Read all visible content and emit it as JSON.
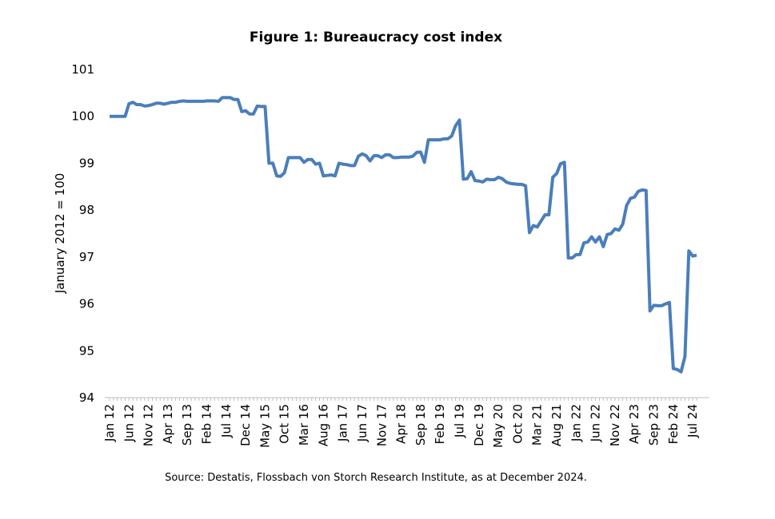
{
  "chart_data": {
    "type": "line",
    "title": "Figure 1: Bureaucracy cost index",
    "y_label": "January 2012 = 100",
    "source": "Source: Destatis, Flossbach von Storch Research Institute, as at December 2024.",
    "categories": [
      "Jan 12",
      null,
      null,
      null,
      null,
      "Jun 12",
      null,
      null,
      null,
      null,
      "Nov 12",
      null,
      null,
      null,
      null,
      "Apr 13",
      null,
      null,
      null,
      null,
      "Sep 13",
      null,
      null,
      null,
      null,
      "Feb 14",
      null,
      null,
      null,
      null,
      "Jul 14",
      null,
      null,
      null,
      null,
      "Dec 14",
      null,
      null,
      null,
      null,
      "May 15",
      null,
      null,
      null,
      null,
      "Oct 15",
      null,
      null,
      null,
      null,
      "Mar 16",
      null,
      null,
      null,
      null,
      "Aug 16",
      null,
      null,
      null,
      null,
      "Jan 17",
      null,
      null,
      null,
      null,
      "Jun 17",
      null,
      null,
      null,
      null,
      "Nov 17",
      null,
      null,
      null,
      null,
      "Apr 18",
      null,
      null,
      null,
      null,
      "Sep 18",
      null,
      null,
      null,
      null,
      "Feb 19",
      null,
      null,
      null,
      null,
      "Jul 19",
      null,
      null,
      null,
      null,
      "Dec 19",
      null,
      null,
      null,
      null,
      "May 20",
      null,
      null,
      null,
      null,
      "Oct 20",
      null,
      null,
      null,
      null,
      "Mar 21",
      null,
      null,
      null,
      null,
      "Aug 21",
      null,
      null,
      null,
      null,
      "Jan 22",
      null,
      null,
      null,
      null,
      "Jun 22",
      null,
      null,
      null,
      null,
      "Nov 22",
      null,
      null,
      null,
      null,
      "Apr 23",
      null,
      null,
      null,
      null,
      "Sep 23",
      null,
      null,
      null,
      null,
      "Feb 24",
      null,
      null,
      null,
      null,
      "Jul 24",
      null
    ],
    "series": [
      {
        "color": "#4a7ebb",
        "values": [
          100,
          100,
          100,
          100,
          100,
          100.27,
          100.3,
          100.25,
          100.25,
          100.22,
          100.23,
          100.25,
          100.28,
          100.28,
          100.26,
          100.28,
          100.3,
          100.3,
          100.32,
          100.33,
          100.32,
          100.32,
          100.32,
          100.32,
          100.32,
          100.33,
          100.33,
          100.33,
          100.32,
          100.4,
          100.4,
          100.4,
          100.36,
          100.36,
          100.1,
          100.12,
          100.05,
          100.05,
          100.22,
          100.21,
          100.21,
          99,
          99,
          98.73,
          98.72,
          98.8,
          99.12,
          99.12,
          99.12,
          99.12,
          99.02,
          99.08,
          99.08,
          98.98,
          99,
          98.73,
          98.74,
          98.75,
          98.73,
          99,
          98.98,
          98.97,
          98.95,
          98.95,
          99.15,
          99.2,
          99.16,
          99.05,
          99.16,
          99.16,
          99.12,
          99.18,
          99.18,
          99.12,
          99.12,
          99.13,
          99.13,
          99.13,
          99.15,
          99.23,
          99.24,
          99.02,
          99.5,
          99.5,
          99.5,
          99.5,
          99.52,
          99.52,
          99.58,
          99.8,
          99.92,
          98.66,
          98.67,
          98.82,
          98.63,
          98.62,
          98.6,
          98.66,
          98.65,
          98.65,
          98.7,
          98.67,
          98.6,
          98.57,
          98.56,
          98.55,
          98.55,
          98.52,
          97.52,
          97.67,
          97.64,
          97.77,
          97.9,
          97.9,
          98.7,
          98.78,
          98.99,
          99.02,
          96.98,
          96.98,
          97.05,
          97.05,
          97.3,
          97.32,
          97.43,
          97.32,
          97.43,
          97.22,
          97.48,
          97.5,
          97.6,
          97.57,
          97.7,
          98.1,
          98.25,
          98.28,
          98.4,
          98.43,
          98.42,
          95.85,
          95.97,
          95.96,
          95.96,
          96,
          96.03,
          94.62,
          94.6,
          94.55,
          94.88,
          97.13,
          97.02,
          97.04
        ]
      }
    ],
    "ylim": [
      94,
      101
    ],
    "yticks": [
      94,
      95,
      96,
      97,
      98,
      99,
      100,
      101
    ],
    "grid": false
  }
}
